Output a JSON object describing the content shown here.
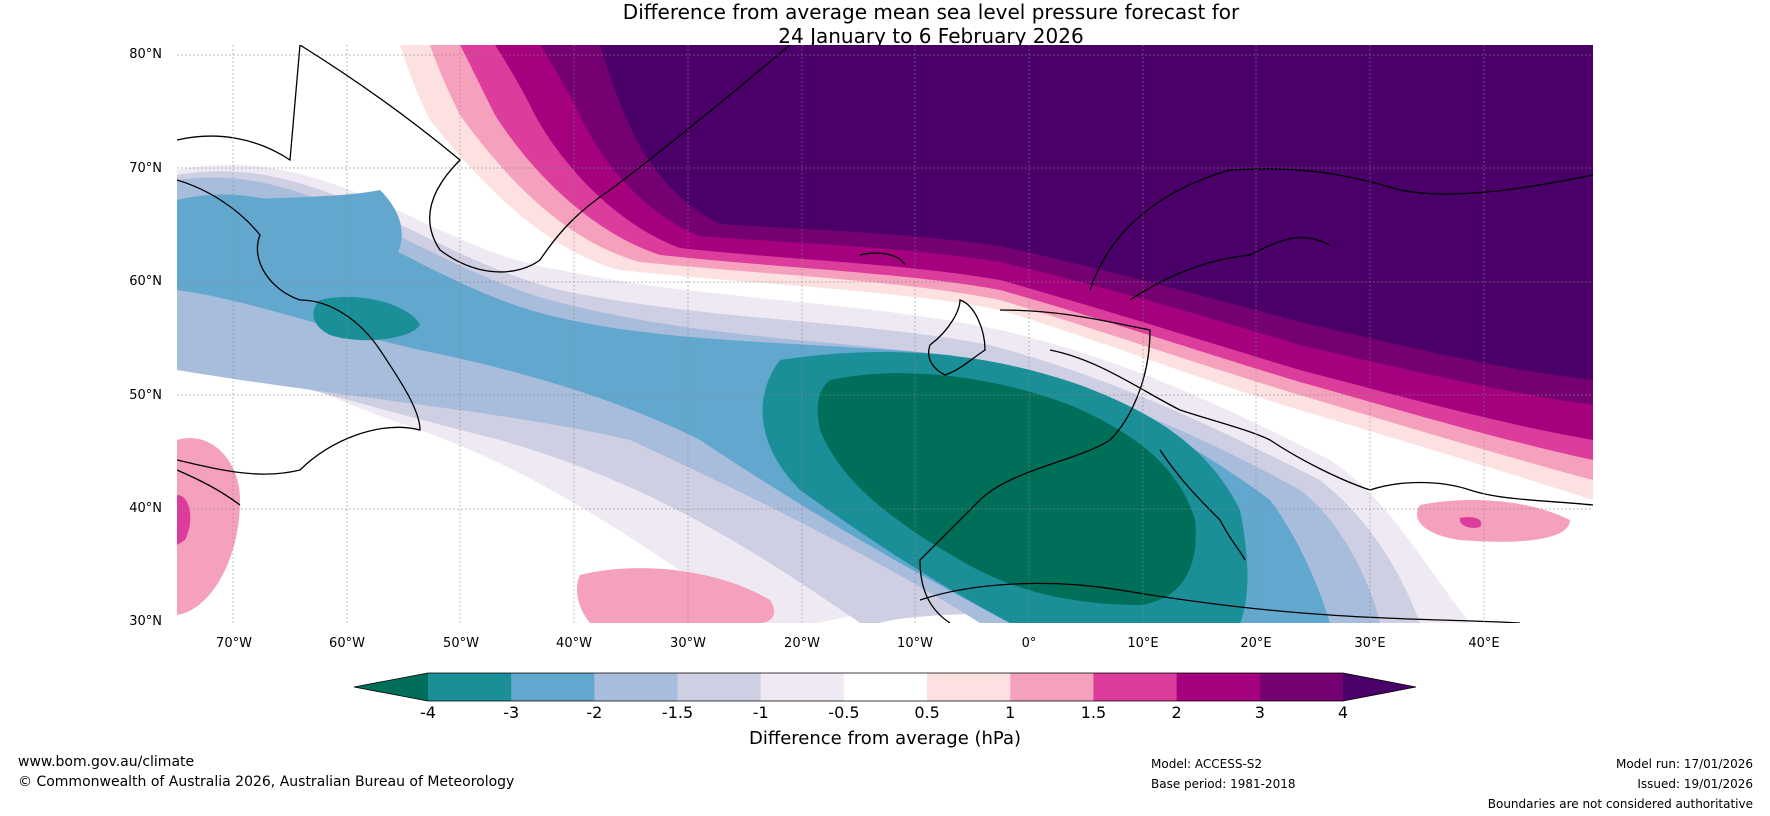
{
  "title": {
    "line1": "Difference from average mean sea level pressure forecast for",
    "line2": "24 January to 6 February 2026"
  },
  "axes": {
    "lat_labels": [
      "80°N",
      "70°N",
      "60°N",
      "50°N",
      "40°N",
      "30°N"
    ],
    "lon_labels": [
      "70°W",
      "60°W",
      "50°W",
      "40°W",
      "30°W",
      "20°W",
      "10°W",
      "0°",
      "10°E",
      "20°E",
      "30°E",
      "40°E"
    ]
  },
  "colorbar": {
    "ticks": [
      "-4",
      "-3",
      "-2",
      "-1.5",
      "-1",
      "-0.5",
      "0.5",
      "1",
      "1.5",
      "2",
      "3",
      "4"
    ],
    "colors": [
      "#006f5a",
      "#1b8f98",
      "#62a8ce",
      "#a8bcdc",
      "#cfcfe3",
      "#efe9f3",
      "#ffffff",
      "#fde0e0",
      "#f5a0bc",
      "#dc3c9c",
      "#a5007d",
      "#740071",
      "#4a0068"
    ],
    "title": "Difference from average (hPa)"
  },
  "footer": {
    "url": "www.bom.gov.au/climate",
    "copyright": "© Commonwealth of Australia 2026, Australian Bureau of Meteorology",
    "model": "Model: ACCESS-S2",
    "base_period": "Base period: 1981-2018",
    "model_run": "Model run: 17/01/2026",
    "issued": "Issued: 19/01/2026",
    "disclaimer": "Boundaries are not considered authoritative"
  }
}
